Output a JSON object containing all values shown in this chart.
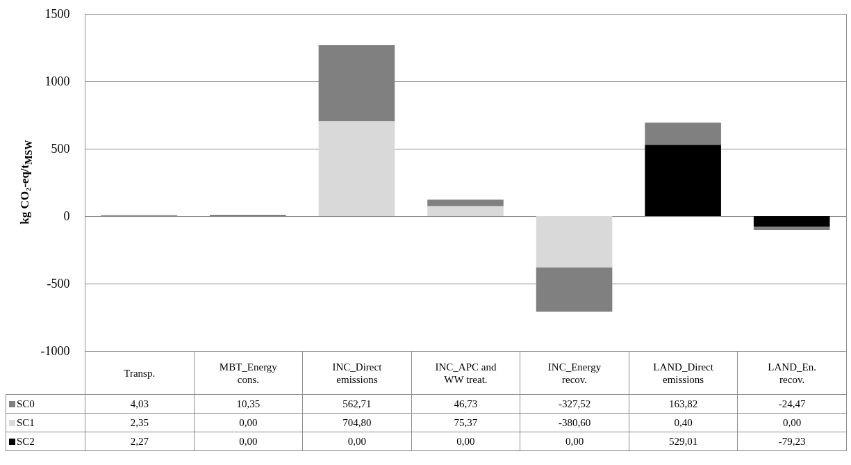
{
  "chart_data": {
    "type": "bar",
    "stacked": true,
    "ylabel": "kg CO₂-eq/t$_{MSW}$",
    "categories": [
      "Transp.",
      "MBT_Energy cons.",
      "INC_Direct emissions",
      "INC_APC and WW treat.",
      "INC_Energy recov.",
      "LAND_Direct emissions",
      "LAND_En. recov."
    ],
    "series": [
      {
        "name": "SC2",
        "color": "#000000",
        "values": [
          2.27,
          0,
          0,
          0,
          0,
          529.01,
          -79.23
        ],
        "value_labels": [
          "2,27",
          "0,00",
          "0,00",
          "0,00",
          "0,00",
          "529,01",
          "-79,23"
        ]
      },
      {
        "name": "SC1",
        "color": "#d9d9d9",
        "values": [
          2.35,
          0,
          704.8,
          75.37,
          -380.6,
          0.4,
          0
        ],
        "value_labels": [
          "2,35",
          "0,00",
          "704,80",
          "75,37",
          "-380,60",
          "0,40",
          "0,00"
        ]
      },
      {
        "name": "SC0",
        "color": "#808080",
        "values": [
          4.03,
          10.35,
          562.71,
          46.73,
          -327.52,
          163.82,
          -24.47
        ],
        "value_labels": [
          "4,03",
          "10,35",
          "562,71",
          "46,73",
          "-327,52",
          "163,82",
          "-24,47"
        ]
      }
    ],
    "ylim": [
      -1000,
      1500
    ],
    "yticks": [
      -1000,
      -500,
      0,
      500,
      1000,
      1500
    ],
    "grid": "y",
    "legend": "bottom"
  }
}
